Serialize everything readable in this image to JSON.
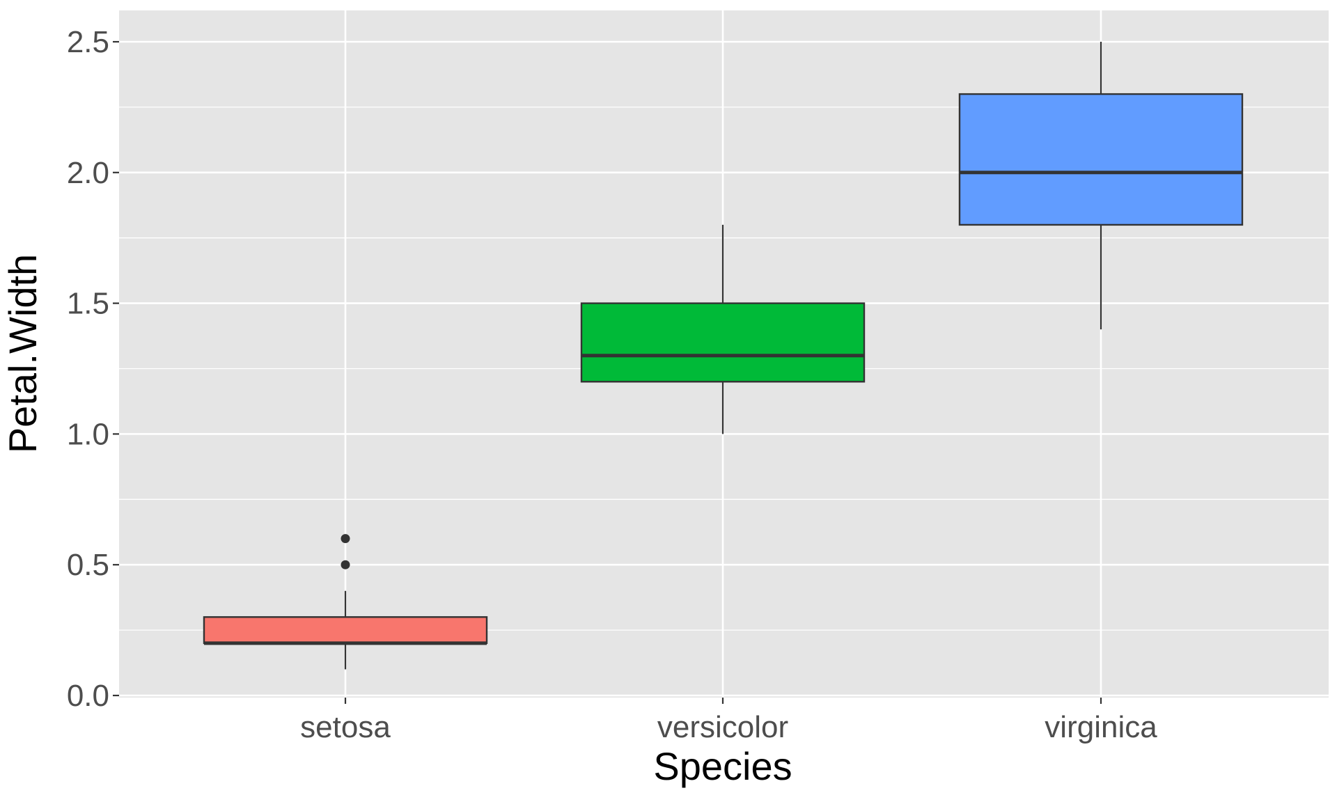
{
  "chart_data": {
    "type": "boxplot",
    "title": "",
    "xlabel": "Species",
    "ylabel": "Petal.Width",
    "ylim": [
      0,
      2.6
    ],
    "y_ticks": [
      "0.0",
      "0.5",
      "1.0",
      "1.5",
      "2.0",
      "2.5"
    ],
    "y_tick_values": [
      0,
      0.5,
      1.0,
      1.5,
      2.0,
      2.5
    ],
    "grid": true,
    "legend": "none",
    "categories": [
      "setosa",
      "versicolor",
      "virginica"
    ],
    "boxes": [
      {
        "name": "setosa",
        "lower_whisker": 0.1,
        "q1": 0.2,
        "median": 0.2,
        "q3": 0.3,
        "upper_whisker": 0.4,
        "outliers": [
          0.5,
          0.6
        ],
        "color": "#F8766D"
      },
      {
        "name": "versicolor",
        "lower_whisker": 1.0,
        "q1": 1.2,
        "median": 1.3,
        "q3": 1.5,
        "upper_whisker": 1.8,
        "outliers": [],
        "color": "#00BA38"
      },
      {
        "name": "virginica",
        "lower_whisker": 1.4,
        "q1": 1.8,
        "median": 2.0,
        "q3": 2.3,
        "upper_whisker": 2.5,
        "outliers": [],
        "color": "#619CFF"
      }
    ],
    "panel_background": "#E5E5E5",
    "grid_color": "#FFFFFF"
  }
}
